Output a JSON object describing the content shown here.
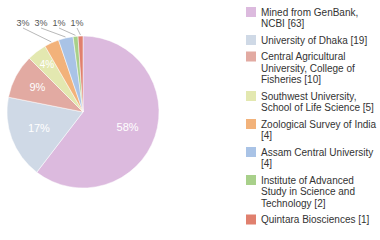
{
  "chart_data": {
    "type": "pie",
    "categories": [
      "Mined from GenBank, NCBI [63]",
      "University of Dhaka [19]",
      "Central Agricultural University, College of Fisheries [10]",
      "Southwest University, School of Life Science [5]",
      "Zoological Survey of India [4]",
      "Assam Central University [4]",
      "Institute of Advanced Study in Science and Technology [2]",
      "Quintara Biosciences [1]"
    ],
    "values": [
      58,
      17,
      9,
      4,
      3,
      3,
      1,
      1
    ],
    "value_labels": [
      "58%",
      "17%",
      "9%",
      "4%",
      "3%",
      "3%",
      "1%",
      "1%"
    ],
    "colors": [
      "#dcbade",
      "#cfd9e6",
      "#e2aaa2",
      "#e3e8b0",
      "#f2b27a",
      "#a9c3e6",
      "#a8d08a",
      "#e0806e"
    ],
    "data_labels": true,
    "legend": "right"
  }
}
